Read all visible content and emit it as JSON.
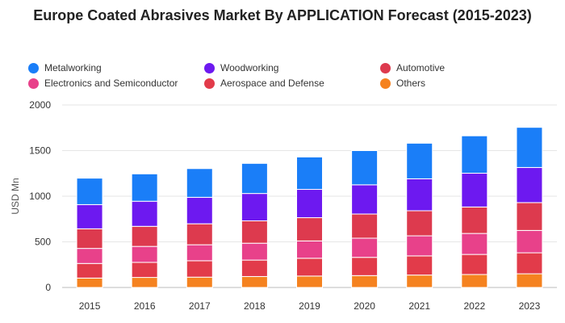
{
  "chart_data": {
    "type": "bar",
    "stacked": true,
    "title": "Europe Coated Abrasives Market By APPLICATION Forecast (2015-2023)",
    "xlabel": "",
    "ylabel": "USD Mn",
    "ylim": [
      0,
      2000
    ],
    "yticks": [
      "0",
      "500",
      "1000",
      "1500",
      "2000"
    ],
    "grid": true,
    "legend_position": "top",
    "categories": [
      "2015",
      "2016",
      "2017",
      "2018",
      "2019",
      "2020",
      "2021",
      "2022",
      "2023"
    ],
    "series": [
      {
        "name": "Others",
        "color": "#F5821F",
        "values": [
          103,
          110,
          113,
          120,
          125,
          130,
          136,
          142,
          150
        ]
      },
      {
        "name": "Aerospace and Defense",
        "color": "#E23B4A",
        "values": [
          160,
          165,
          180,
          180,
          195,
          200,
          210,
          220,
          230
        ]
      },
      {
        "name": "Electronics and Semiconductor",
        "color": "#E8418A",
        "values": [
          165,
          175,
          175,
          185,
          190,
          210,
          220,
          230,
          245
        ]
      },
      {
        "name": "Automotive",
        "color": "#DD3A4E",
        "values": [
          215,
          220,
          230,
          245,
          255,
          265,
          275,
          290,
          305
        ]
      },
      {
        "name": "Woodworking",
        "color": "#6D19F0",
        "values": [
          265,
          275,
          290,
          300,
          310,
          320,
          350,
          370,
          385
        ]
      },
      {
        "name": "Metalworking",
        "color": "#1A7EF8",
        "values": [
          290,
          300,
          315,
          330,
          355,
          375,
          390,
          410,
          440
        ]
      }
    ]
  },
  "legend": [
    {
      "label": "Metalworking",
      "color": "#1A7EF8"
    },
    {
      "label": "Woodworking",
      "color": "#6D19F0"
    },
    {
      "label": "Automotive",
      "color": "#DD3A4E"
    },
    {
      "label": "Electronics and Semiconductor",
      "color": "#E8418A"
    },
    {
      "label": "Aerospace and Defense",
      "color": "#E23B4A"
    },
    {
      "label": "Others",
      "color": "#F5821F"
    }
  ]
}
